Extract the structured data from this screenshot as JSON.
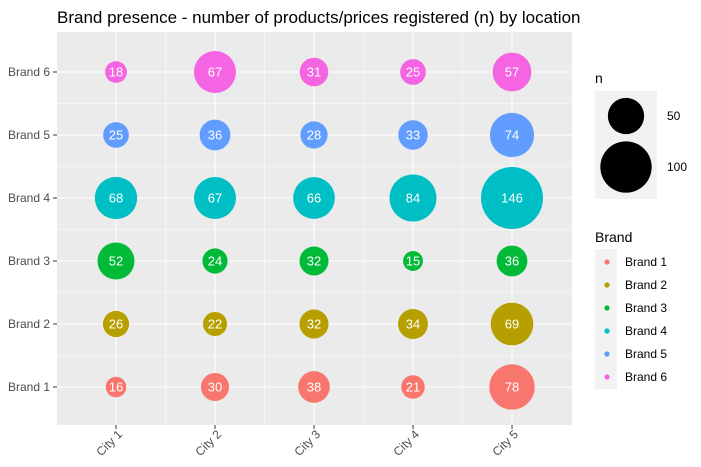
{
  "chart_data": {
    "type": "scatter",
    "title": "Brand presence - number of products/prices registered (n) by location",
    "xlabel": "",
    "ylabel": "",
    "x_categories": [
      "City 1",
      "City 2",
      "City 3",
      "City 4",
      "City 5"
    ],
    "y_categories": [
      "Brand 1",
      "Brand 2",
      "Brand 3",
      "Brand 4",
      "Brand 5",
      "Brand 6"
    ],
    "series": [
      {
        "name": "Brand 1",
        "color": "#F8766D",
        "values": [
          16,
          30,
          38,
          21,
          78
        ]
      },
      {
        "name": "Brand 2",
        "color": "#B79F00",
        "values": [
          26,
          22,
          32,
          34,
          69
        ]
      },
      {
        "name": "Brand 3",
        "color": "#00BA38",
        "values": [
          52,
          24,
          32,
          15,
          36
        ]
      },
      {
        "name": "Brand 4",
        "color": "#00BFC4",
        "values": [
          68,
          67,
          66,
          84,
          146
        ]
      },
      {
        "name": "Brand 5",
        "color": "#619CFF",
        "values": [
          25,
          36,
          28,
          33,
          74
        ]
      },
      {
        "name": "Brand 6",
        "color": "#F564E3",
        "values": [
          18,
          67,
          31,
          25,
          57
        ]
      }
    ],
    "size_legend": {
      "title": "n",
      "breaks": [
        50,
        100
      ]
    },
    "color_legend": {
      "title": "Brand"
    },
    "grid": true,
    "legend_position": "right",
    "panel_background": "#EBEBEB"
  }
}
